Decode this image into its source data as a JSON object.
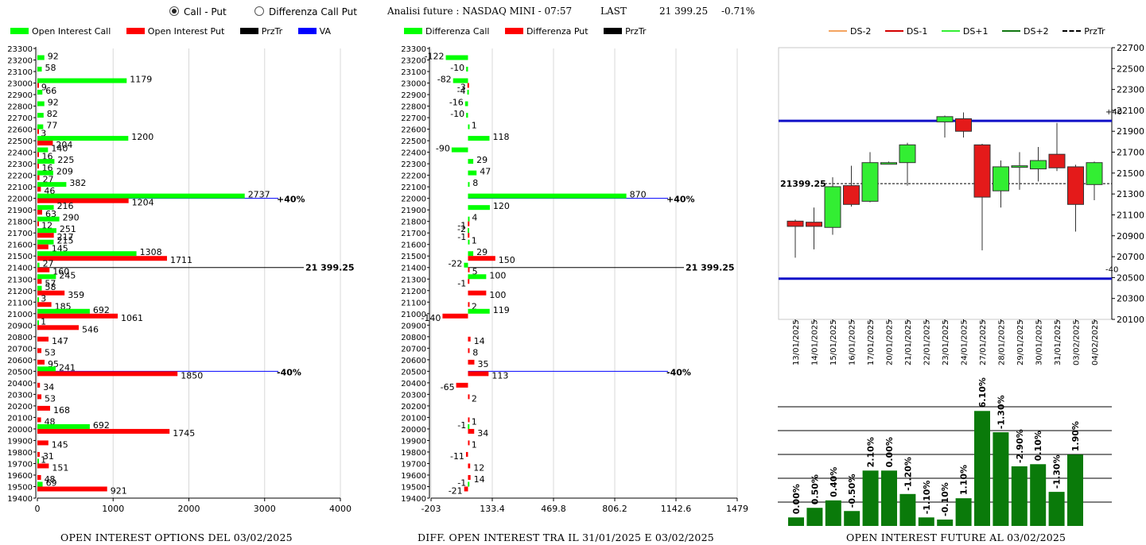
{
  "header": {
    "radio_call_put": "Call - Put",
    "radio_diff": "Differenza Call Put",
    "analysis": "Analisi future : NASDAQ MINI - 07:57",
    "last_label": "LAST",
    "last_value": "21 399.25",
    "last_change": "-0.71%"
  },
  "legends": {
    "left": [
      {
        "label": "Open Interest Call",
        "color": "#00ff00"
      },
      {
        "label": "Open Interest Put",
        "color": "#ff0000"
      },
      {
        "label": "PrzTr",
        "color": "#000000"
      },
      {
        "label": "VA",
        "color": "#0000ff"
      }
    ],
    "middle": [
      {
        "label": "Differenza Call",
        "color": "#00ff00"
      },
      {
        "label": "Differenza Put",
        "color": "#ff0000"
      },
      {
        "label": "PrzTr",
        "color": "#000000"
      }
    ],
    "right": [
      {
        "label": "DS-2",
        "color": "#f4a460",
        "style": "solid"
      },
      {
        "label": "DS-1",
        "color": "#d40000",
        "style": "solid"
      },
      {
        "label": "DS+1",
        "color": "#33ee33",
        "style": "solid"
      },
      {
        "label": "DS+2",
        "color": "#117711",
        "style": "solid"
      },
      {
        "label": "PrzTr",
        "color": "#000000",
        "style": "dashed"
      }
    ]
  },
  "titles": {
    "left": "OPEN INTEREST OPTIONS DEL 03/02/2025",
    "middle": "DIFF. OPEN INTEREST TRA IL 31/01/2025 E 03/02/2025",
    "right": "OPEN INTEREST FUTURE AL 03/02/2025"
  },
  "chart_data": [
    {
      "type": "bar",
      "name": "open-interest-options",
      "orientation": "horizontal",
      "strikes": [
        23300,
        23200,
        23100,
        23000,
        22900,
        22800,
        22700,
        22600,
        22500,
        22400,
        22300,
        22200,
        22100,
        22000,
        21900,
        21800,
        21700,
        21600,
        21500,
        21400,
        21300,
        21200,
        21100,
        21000,
        20900,
        20800,
        20700,
        20600,
        20500,
        20400,
        20300,
        20200,
        20100,
        20000,
        19900,
        19800,
        19700,
        19600,
        19500,
        19400
      ],
      "call": [
        null,
        92,
        58,
        1179,
        66,
        92,
        82,
        77,
        1200,
        140,
        225,
        209,
        382,
        2737,
        216,
        290,
        251,
        215,
        1308,
        27,
        245,
        58,
        3,
        692,
        1,
        null,
        null,
        null,
        241,
        null,
        null,
        null,
        null,
        692,
        null,
        null,
        1,
        null,
        69,
        null
      ],
      "put": [
        null,
        null,
        null,
        9,
        null,
        null,
        null,
        3,
        204,
        16,
        16,
        27,
        46,
        1204,
        63,
        12,
        217,
        145,
        1711,
        160,
        57,
        359,
        185,
        1061,
        546,
        147,
        53,
        95,
        1850,
        34,
        53,
        168,
        48,
        1745,
        145,
        31,
        151,
        48,
        921,
        null
      ],
      "xticks": [
        0,
        1000,
        2000,
        3000,
        4000
      ],
      "xlim": [
        0,
        4000
      ],
      "ylim": [
        19400,
        23300
      ],
      "price_line": {
        "value": 21400,
        "label": "21 399.25"
      },
      "va_lines": [
        {
          "value": 22000,
          "label": "+40%"
        },
        {
          "value": 20500,
          "label": "-40%"
        }
      ]
    },
    {
      "type": "bar",
      "name": "diff-open-interest",
      "orientation": "horizontal",
      "strikes": [
        23300,
        23200,
        23100,
        23000,
        22900,
        22800,
        22700,
        22600,
        22500,
        22400,
        22300,
        22200,
        22100,
        22000,
        21900,
        21800,
        21700,
        21600,
        21500,
        21400,
        21300,
        21200,
        21100,
        21000,
        20900,
        20800,
        20700,
        20600,
        20500,
        20400,
        20300,
        20200,
        20100,
        20000,
        19900,
        19800,
        19700,
        19600,
        19500,
        19400
      ],
      "call": [
        null,
        -122,
        -10,
        -82,
        -4,
        -16,
        -10,
        1,
        118,
        -90,
        29,
        47,
        8,
        870,
        120,
        4,
        -2,
        1,
        29,
        -22,
        100,
        null,
        null,
        119,
        null,
        null,
        null,
        null,
        null,
        null,
        null,
        null,
        null,
        -1,
        null,
        null,
        null,
        null,
        -1,
        null
      ],
      "put": [
        null,
        null,
        null,
        -3,
        null,
        null,
        null,
        null,
        null,
        null,
        null,
        null,
        null,
        null,
        null,
        -1,
        -1,
        null,
        150,
        5,
        -1,
        100,
        2,
        -140,
        null,
        14,
        8,
        35,
        113,
        -65,
        2,
        null,
        1,
        34,
        1,
        -11,
        12,
        14,
        -21,
        null
      ],
      "xticks": [
        -203,
        133.4,
        469.8,
        806.2,
        1142.6,
        1479
      ],
      "xlim": [
        -203,
        1479
      ],
      "ylim": [
        19400,
        23300
      ],
      "price_line": {
        "value": 21400,
        "label": "21 399.25"
      },
      "va_lines": [
        {
          "value": 22000,
          "label": "+40%"
        },
        {
          "value": 20500,
          "label": "-40%"
        }
      ]
    },
    {
      "type": "candlestick",
      "name": "daily-candles",
      "dates": [
        "13/01/2025",
        "14/01/2025",
        "15/01/2025",
        "16/01/2025",
        "17/01/2025",
        "20/01/2025",
        "21/01/2025",
        "22/01/2025",
        "23/01/2025",
        "24/01/2025",
        "27/01/2025",
        "28/01/2025",
        "29/01/2025",
        "30/01/2025",
        "31/01/2025",
        "03/02/2025",
        "04/02/2025"
      ],
      "open": [
        21040,
        21030,
        20980,
        21380,
        21230,
        21600,
        21600,
        null,
        21990,
        22020,
        21770,
        21330,
        21560,
        21540,
        21680,
        21560,
        21390
      ],
      "high": [
        21055,
        21170,
        21460,
        21570,
        21700,
        21610,
        21790,
        null,
        22050,
        22080,
        21780,
        21620,
        21700,
        21750,
        21980,
        21580,
        21610
      ],
      "low": [
        20690,
        20770,
        20910,
        21180,
        21220,
        21590,
        21380,
        null,
        21840,
        21840,
        20760,
        21170,
        21340,
        21420,
        21520,
        20940,
        21240
      ],
      "close": [
        20990,
        20990,
        21370,
        21200,
        21600,
        21600,
        21770,
        null,
        22040,
        21900,
        21270,
        21560,
        21570,
        21620,
        21550,
        21200,
        21600
      ],
      "ylim": [
        20100,
        22700
      ],
      "yticks": [
        20100,
        20300,
        20500,
        20700,
        20900,
        21100,
        21300,
        21500,
        21700,
        21900,
        22100,
        22300,
        22500,
        22700
      ],
      "price_line": {
        "value": 21399.25,
        "label": "21399.25"
      },
      "range_lines": [
        {
          "value": 22000,
          "label": "+40"
        },
        {
          "value": 20490,
          "label": "-40"
        }
      ]
    },
    {
      "type": "bar",
      "name": "open-interest-future",
      "categories": [
        "13/01/2025",
        "14/01/2025",
        "15/01/2025",
        "16/01/2025",
        "17/01/2025",
        "20/01/2025",
        "21/01/2025",
        "22/01/2025",
        "23/01/2025",
        "24/01/2025",
        "27/01/2025",
        "28/01/2025",
        "29/01/2025",
        "30/01/2025",
        "31/01/2025",
        "03/02/2025"
      ],
      "labels": [
        "0.00%",
        "0.50%",
        "0.40%",
        "-0.50%",
        "2.10%",
        "0.00%",
        "-1.20%",
        "-1.10%",
        "-0.10%",
        "1.10%",
        "6.10%",
        "-1.30%",
        "-2.90%",
        "0.10%",
        "-1.30%",
        "1.90%"
      ],
      "values": [
        0.8,
        1.7,
        2.4,
        1.4,
        5.2,
        5.2,
        3.0,
        0.8,
        0.6,
        2.6,
        10.8,
        8.8,
        5.6,
        5.8,
        3.2,
        6.7
      ]
    }
  ]
}
